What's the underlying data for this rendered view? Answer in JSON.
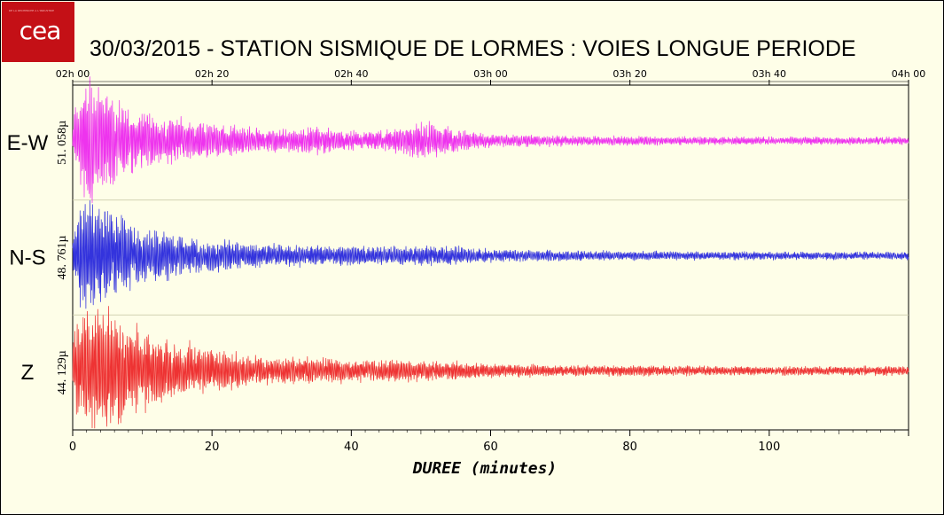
{
  "logo": {
    "text": "cea",
    "tagline": "DE LA RECHERCHE À L'INDUSTRIE"
  },
  "title": "30/03/2015  -  STATION SISMIQUE DE LORMES : VOIES LONGUE PERIODE",
  "chart_data": {
    "type": "line",
    "title": "30/03/2015  -  STATION SISMIQUE DE LORMES : VOIES LONGUE PERIODE",
    "xlabel": "DUREE (minutes)",
    "xlim": [
      0,
      120
    ],
    "x_ticks": [
      0,
      20,
      40,
      60,
      80,
      100
    ],
    "top_axis_ticks": [
      "02h 00",
      "02h 20",
      "02h 40",
      "03h 00",
      "03h 20",
      "03h 40",
      "04h 00"
    ],
    "grid": false,
    "series": [
      {
        "name": "E-W",
        "amplitude_label": "51. 058µ",
        "color": "#ee33ee",
        "envelope": {
          "t": [
            0,
            1,
            2.5,
            4,
            6,
            10,
            16,
            22,
            28,
            35,
            40,
            45,
            50,
            55,
            60,
            70,
            80,
            100,
            120
          ],
          "a": [
            0.25,
            0.85,
            1.0,
            0.8,
            0.65,
            0.45,
            0.32,
            0.26,
            0.16,
            0.22,
            0.14,
            0.16,
            0.3,
            0.18,
            0.1,
            0.08,
            0.07,
            0.06,
            0.06
          ]
        }
      },
      {
        "name": "N-S",
        "amplitude_label": "48. 761µ",
        "color": "#3333dd",
        "envelope": {
          "t": [
            0,
            1,
            2.5,
            4,
            7,
            10,
            16,
            22,
            28,
            35,
            40,
            50,
            55,
            60,
            70,
            80,
            100,
            120
          ],
          "a": [
            0.3,
            0.8,
            1.0,
            0.78,
            0.6,
            0.45,
            0.3,
            0.25,
            0.18,
            0.16,
            0.15,
            0.16,
            0.15,
            0.1,
            0.08,
            0.07,
            0.06,
            0.06
          ]
        }
      },
      {
        "name": "Z",
        "amplitude_label": "44. 129µ",
        "color": "#ee3333",
        "envelope": {
          "t": [
            0,
            1,
            3,
            6,
            8,
            12,
            16,
            22,
            28,
            35,
            40,
            50,
            55,
            60,
            70,
            80,
            100,
            120
          ],
          "a": [
            0.6,
            0.9,
            1.0,
            1.0,
            0.78,
            0.55,
            0.42,
            0.32,
            0.22,
            0.2,
            0.18,
            0.16,
            0.14,
            0.1,
            0.09,
            0.08,
            0.07,
            0.07
          ]
        }
      }
    ]
  }
}
